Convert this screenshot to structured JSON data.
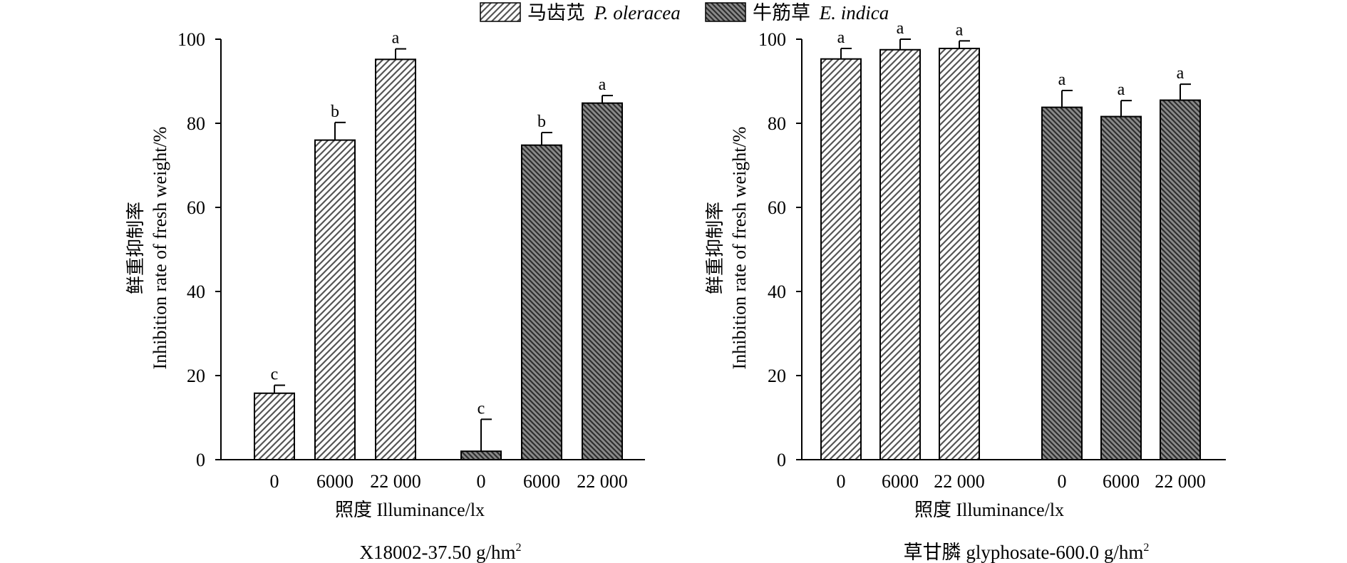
{
  "legend": {
    "entries": [
      {
        "label_cn": "马齿苋",
        "label_latin": "P. oleracea",
        "fill": "hatch-light"
      },
      {
        "label_cn": "牛筋草",
        "label_latin": "E. indica",
        "fill": "hatch-dark"
      }
    ]
  },
  "colors": {
    "light_hatch_bg": "#ffffff",
    "light_hatch_line": "#555555",
    "dark_hatch_bg": "#8a8a8a",
    "dark_hatch_line": "#2e2e2e",
    "axis": "#000000"
  },
  "chart_data": [
    {
      "type": "bar",
      "caption": "X18002-37.50 g/hm",
      "caption_sup": "2",
      "xlabel": "照度 Illuminance/lx",
      "ylabel_cn": "鲜重抑制率",
      "ylabel_en": "Inhibition rate of fresh weight/%",
      "ylim": [
        0,
        100
      ],
      "yticks": [
        0,
        20,
        40,
        60,
        80,
        100
      ],
      "categories": [
        "0",
        "6000",
        "22 000"
      ],
      "series": [
        {
          "name": "马齿苋 P. oleracea",
          "fill": "hatch-light",
          "values": [
            15.8,
            76.0,
            95.2
          ],
          "errors": [
            1.9,
            4.2,
            2.5
          ],
          "letters": [
            "c",
            "b",
            "a"
          ]
        },
        {
          "name": "牛筋草 E. indica",
          "fill": "hatch-dark",
          "values": [
            2.0,
            74.8,
            84.8
          ],
          "errors": [
            7.6,
            3.0,
            1.8
          ],
          "letters": [
            "c",
            "b",
            "a"
          ]
        }
      ]
    },
    {
      "type": "bar",
      "caption": "草甘膦 glyphosate-600.0 g/hm",
      "caption_sup": "2",
      "xlabel": "照度 Illuminance/lx",
      "ylabel_cn": "鲜重抑制率",
      "ylabel_en": "Inhibition rate of fresh weight/%",
      "ylim": [
        0,
        100
      ],
      "yticks": [
        0,
        20,
        40,
        60,
        80,
        100
      ],
      "categories": [
        "0",
        "6000",
        "22 000"
      ],
      "series": [
        {
          "name": "马齿苋 P. oleracea",
          "fill": "hatch-light",
          "values": [
            95.3,
            97.5,
            97.8
          ],
          "errors": [
            2.5,
            2.5,
            1.8
          ],
          "letters": [
            "a",
            "a",
            "a"
          ]
        },
        {
          "name": "牛筋草 E. indica",
          "fill": "hatch-dark",
          "values": [
            83.8,
            81.6,
            85.5
          ],
          "errors": [
            4.0,
            3.8,
            3.8
          ],
          "letters": [
            "a",
            "a",
            "a"
          ]
        }
      ]
    }
  ]
}
